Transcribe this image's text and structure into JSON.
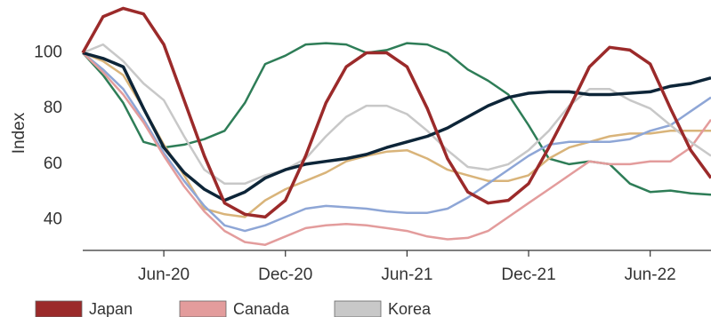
{
  "chart_data": {
    "type": "line",
    "y_label": "Index",
    "categories": [
      null,
      null,
      null,
      null,
      "Jun-20",
      null,
      null,
      null,
      null,
      null,
      "Dec-20",
      null,
      null,
      null,
      null,
      null,
      "Jun-21",
      null,
      null,
      null,
      null,
      null,
      "Dec-21",
      null,
      null,
      null,
      null,
      null,
      "Jun-22",
      null,
      null,
      null
    ],
    "ylim": [
      29,
      119
    ],
    "yticks": [
      40,
      60,
      80,
      100
    ],
    "series": [
      {
        "color": "#2e7d57",
        "values": [
          100,
          92,
          82,
          68,
          66,
          67,
          69,
          72,
          82,
          96,
          99,
          103,
          103.5,
          103,
          100,
          101,
          103.5,
          103,
          100,
          94,
          90,
          85,
          74,
          62,
          60,
          61,
          60,
          53,
          50,
          50.5,
          49.5,
          49
        ]
      },
      {
        "color": "#d9b47a",
        "values": [
          100,
          97,
          92,
          80,
          67,
          56,
          44,
          42,
          41,
          47,
          51,
          54,
          57,
          61,
          63,
          64.5,
          65,
          62,
          58,
          56,
          54,
          54,
          56,
          62,
          66,
          68,
          70,
          71,
          71,
          72,
          72,
          72
        ]
      },
      {
        "color": "#8ea6d6",
        "values": [
          100,
          94,
          87,
          76,
          64,
          54,
          45,
          38,
          36,
          38,
          41,
          44,
          45,
          44.5,
          44,
          43,
          42.5,
          42.5,
          44,
          48,
          53,
          58,
          63,
          67,
          68,
          68,
          68,
          69,
          72,
          74,
          79,
          84
        ]
      },
      {
        "name": "Canada",
        "color": "#e39c9c",
        "values": [
          100,
          93,
          85,
          75,
          63,
          52,
          43,
          36,
          32,
          31,
          34,
          37,
          38,
          38.5,
          38,
          37,
          36,
          34,
          33,
          33.5,
          36,
          41,
          46,
          51,
          56,
          61,
          60,
          60,
          61,
          61,
          66,
          76
        ]
      },
      {
        "name": "Korea",
        "color": "#c8c8c8",
        "values": [
          100,
          103,
          97,
          89,
          83,
          70,
          58,
          53,
          53,
          56,
          58,
          62,
          70,
          77,
          81,
          81,
          78,
          72,
          65,
          59,
          58,
          60,
          65,
          72,
          81,
          87,
          87,
          83,
          80,
          74,
          68,
          63
        ]
      },
      {
        "color": "#0d2538",
        "values": [
          100,
          98,
          95,
          80,
          66,
          57,
          51,
          47,
          50,
          55,
          58,
          60,
          61,
          62,
          63.5,
          66,
          68,
          70,
          73,
          77,
          81,
          84,
          85.5,
          86,
          86,
          85,
          85,
          85.5,
          86,
          88,
          89,
          91
        ]
      },
      {
        "name": "Japan",
        "color": "#9b2a2a",
        "values": [
          100,
          113,
          116,
          114,
          103,
          83,
          63,
          46,
          42,
          41,
          47,
          63,
          82,
          95,
          100,
          100,
          95,
          80,
          62,
          50,
          46,
          47,
          53,
          66,
          80,
          95,
          102,
          101,
          96,
          80,
          65,
          55
        ]
      }
    ],
    "legend_order": [
      "Japan",
      "Canada",
      "Korea"
    ]
  }
}
